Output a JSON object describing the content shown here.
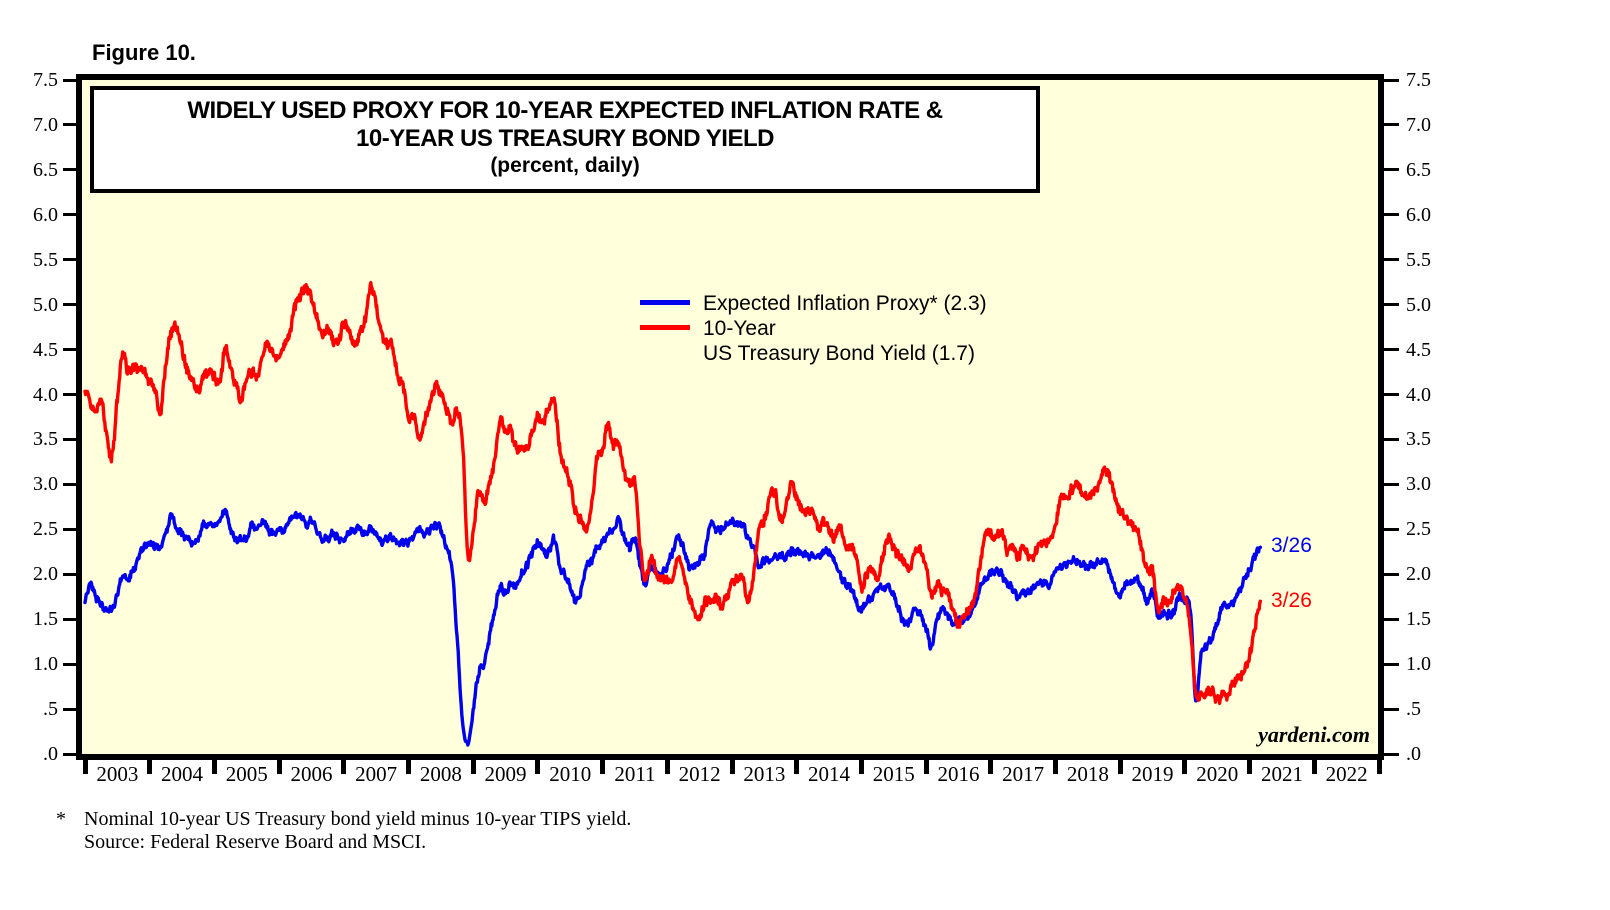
{
  "figure_label": "Figure 10.",
  "title_box": {
    "line1": "WIDELY USED PROXY FOR 10-YEAR EXPECTED INFLATION RATE &",
    "line2": "10-YEAR US TREASURY BOND YIELD",
    "line3": "(percent, daily)"
  },
  "legend": {
    "items": [
      {
        "line1": "Expected Inflation Proxy* (2.3)",
        "line2": "",
        "color": "#0000EE"
      },
      {
        "line1": "10-Year",
        "line2": "US Treasury Bond Yield (1.7)",
        "color": "#FF0000"
      }
    ]
  },
  "annotations": [
    {
      "text": "3/26",
      "color": "#0000EE",
      "series": "Expected Inflation Proxy",
      "value": 2.3
    },
    {
      "text": "3/26",
      "color": "#FF0000",
      "series": "10-Year US Treasury Bond Yield",
      "value": 1.7
    }
  ],
  "watermark": "yardeni.com",
  "footnote": {
    "star": "*",
    "line1": "Nominal 10-year US Treasury bond yield minus 10-year TIPS yield.",
    "line2": "Source: Federal Reserve Board and MSCI."
  },
  "chart_data": {
    "type": "line",
    "title": "WIDELY USED PROXY FOR 10-YEAR EXPECTED INFLATION RATE & 10-YEAR US TREASURY BOND YIELD (percent, daily)",
    "ylabel": "percent",
    "ylim": [
      0,
      7.5
    ],
    "ytick_step": 0.5,
    "ytick_labels": [
      ".0",
      ".5",
      "1.0",
      "1.5",
      "2.0",
      "2.5",
      "3.0",
      "3.5",
      "4.0",
      "4.5",
      "5.0",
      "5.5",
      "6.0",
      "6.5",
      "7.0",
      "7.5"
    ],
    "x_years": [
      "2003",
      "2004",
      "2005",
      "2006",
      "2007",
      "2008",
      "2009",
      "2010",
      "2011",
      "2012",
      "2013",
      "2014",
      "2015",
      "2016",
      "2017",
      "2018",
      "2019",
      "2020",
      "2021",
      "2022"
    ],
    "x_start": 2003.0,
    "x_step": "monthly",
    "x_end": 2021.23,
    "grid": false,
    "background": "#FFFFDC",
    "legend_position": "upper-middle",
    "series": [
      {
        "name": "Expected Inflation Proxy* (2.3)",
        "color": "#0000EE",
        "last_date": "3/26",
        "last_value": 2.3,
        "values": [
          1.7,
          1.9,
          1.75,
          1.65,
          1.6,
          1.62,
          1.78,
          2.0,
          1.95,
          2.05,
          2.2,
          2.3,
          2.35,
          2.3,
          2.32,
          2.45,
          2.65,
          2.5,
          2.45,
          2.4,
          2.35,
          2.4,
          2.55,
          2.55,
          2.55,
          2.6,
          2.7,
          2.5,
          2.4,
          2.4,
          2.4,
          2.55,
          2.5,
          2.6,
          2.5,
          2.45,
          2.5,
          2.5,
          2.6,
          2.65,
          2.65,
          2.55,
          2.6,
          2.5,
          2.4,
          2.4,
          2.45,
          2.4,
          2.4,
          2.45,
          2.5,
          2.5,
          2.45,
          2.5,
          2.45,
          2.35,
          2.4,
          2.4,
          2.35,
          2.35,
          2.35,
          2.45,
          2.5,
          2.45,
          2.5,
          2.55,
          2.5,
          2.3,
          2.1,
          1.3,
          0.4,
          0.1,
          0.5,
          0.9,
          1.0,
          1.3,
          1.6,
          1.85,
          1.8,
          1.9,
          1.85,
          2.0,
          2.1,
          2.25,
          2.35,
          2.25,
          2.25,
          2.4,
          2.1,
          2.0,
          1.85,
          1.7,
          1.8,
          2.1,
          2.15,
          2.3,
          2.35,
          2.45,
          2.5,
          2.6,
          2.4,
          2.3,
          2.4,
          2.1,
          1.9,
          2.1,
          2.0,
          2.0,
          2.1,
          2.25,
          2.4,
          2.3,
          2.1,
          2.1,
          2.15,
          2.25,
          2.55,
          2.5,
          2.5,
          2.55,
          2.6,
          2.55,
          2.55,
          2.4,
          2.3,
          2.1,
          2.15,
          2.15,
          2.2,
          2.2,
          2.2,
          2.25,
          2.25,
          2.25,
          2.2,
          2.2,
          2.2,
          2.25,
          2.25,
          2.15,
          2.0,
          1.9,
          1.85,
          1.7,
          1.6,
          1.7,
          1.75,
          1.85,
          1.85,
          1.85,
          1.75,
          1.6,
          1.45,
          1.5,
          1.6,
          1.55,
          1.4,
          1.2,
          1.5,
          1.6,
          1.55,
          1.45,
          1.5,
          1.5,
          1.55,
          1.65,
          1.85,
          1.95,
          2.0,
          2.05,
          2.0,
          1.9,
          1.85,
          1.75,
          1.8,
          1.8,
          1.85,
          1.9,
          1.9,
          1.9,
          2.05,
          2.1,
          2.1,
          2.15,
          2.15,
          2.1,
          2.1,
          2.1,
          2.15,
          2.15,
          2.05,
          1.85,
          1.75,
          1.9,
          1.9,
          1.95,
          1.85,
          1.7,
          1.8,
          1.55,
          1.55,
          1.55,
          1.6,
          1.75,
          1.7,
          1.6,
          0.6,
          1.1,
          1.2,
          1.3,
          1.45,
          1.65,
          1.65,
          1.7,
          1.8,
          1.95,
          2.05,
          2.2,
          2.3
        ]
      },
      {
        "name": "10-Year US Treasury Bond Yield (1.7)",
        "color": "#FF0000",
        "last_date": "3/26",
        "last_value": 1.7,
        "values": [
          4.05,
          3.9,
          3.8,
          3.95,
          3.55,
          3.3,
          3.95,
          4.45,
          4.25,
          4.3,
          4.3,
          4.25,
          4.15,
          4.05,
          3.8,
          4.35,
          4.7,
          4.75,
          4.5,
          4.25,
          4.15,
          4.05,
          4.2,
          4.25,
          4.2,
          4.15,
          4.5,
          4.3,
          4.1,
          3.95,
          4.2,
          4.25,
          4.2,
          4.45,
          4.55,
          4.45,
          4.4,
          4.55,
          4.7,
          5.0,
          5.1,
          5.2,
          5.05,
          4.85,
          4.65,
          4.75,
          4.6,
          4.6,
          4.8,
          4.7,
          4.55,
          4.7,
          4.85,
          5.2,
          5.0,
          4.7,
          4.55,
          4.55,
          4.2,
          4.1,
          3.75,
          3.75,
          3.5,
          3.7,
          3.9,
          4.1,
          4.0,
          3.85,
          3.7,
          3.8,
          3.5,
          2.2,
          2.5,
          2.9,
          2.8,
          3.0,
          3.3,
          3.7,
          3.6,
          3.6,
          3.4,
          3.4,
          3.4,
          3.6,
          3.75,
          3.7,
          3.85,
          3.95,
          3.4,
          3.2,
          3.0,
          2.7,
          2.6,
          2.5,
          2.8,
          3.3,
          3.4,
          3.65,
          3.45,
          3.45,
          3.15,
          3.0,
          3.0,
          2.3,
          1.95,
          2.2,
          2.0,
          1.95,
          1.95,
          1.95,
          2.2,
          2.0,
          1.75,
          1.6,
          1.5,
          1.7,
          1.7,
          1.75,
          1.65,
          1.75,
          1.9,
          1.95,
          1.95,
          1.7,
          2.0,
          2.5,
          2.6,
          2.85,
          2.9,
          2.6,
          2.75,
          3.0,
          2.85,
          2.7,
          2.7,
          2.7,
          2.5,
          2.6,
          2.5,
          2.4,
          2.55,
          2.3,
          2.3,
          2.2,
          1.85,
          2.0,
          2.05,
          1.95,
          2.2,
          2.4,
          2.3,
          2.2,
          2.15,
          2.05,
          2.25,
          2.25,
          2.1,
          1.75,
          1.9,
          1.8,
          1.8,
          1.6,
          1.45,
          1.55,
          1.6,
          1.75,
          2.1,
          2.45,
          2.45,
          2.4,
          2.5,
          2.25,
          2.3,
          2.2,
          2.3,
          2.2,
          2.2,
          2.35,
          2.35,
          2.4,
          2.55,
          2.85,
          2.85,
          2.95,
          3.0,
          2.9,
          2.85,
          2.9,
          3.0,
          3.15,
          3.1,
          2.85,
          2.7,
          2.65,
          2.55,
          2.5,
          2.3,
          2.05,
          2.05,
          1.6,
          1.7,
          1.7,
          1.8,
          1.85,
          1.75,
          1.4,
          0.68,
          0.65,
          0.67,
          0.7,
          0.6,
          0.65,
          0.67,
          0.8,
          0.85,
          0.92,
          1.1,
          1.4,
          1.7
        ]
      }
    ]
  }
}
